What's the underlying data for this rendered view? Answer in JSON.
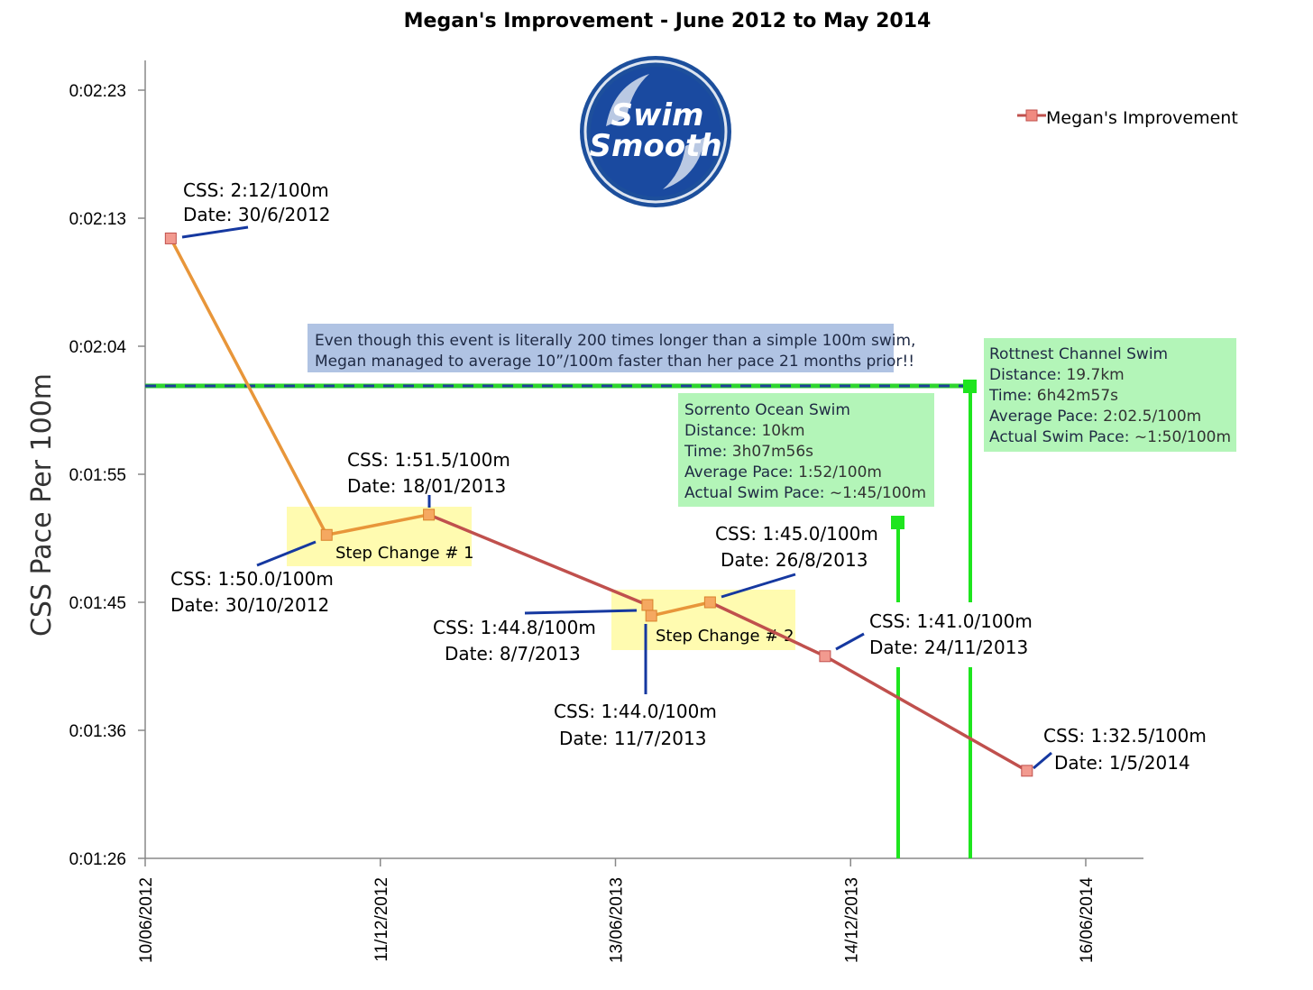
{
  "chart_data": {
    "type": "line",
    "title": "Megan's Improvement - June 2012 to May 2014",
    "ylabel": "CSS Pace Per 100m",
    "xlabel": "",
    "y_ticks": [
      "0:01:26",
      "0:01:36",
      "0:01:45",
      "0:01:55",
      "0:02:04",
      "0:02:13",
      "0:02:23"
    ],
    "x_ticks": [
      "10/06/2012",
      "11/12/2012",
      "13/06/2013",
      "14/12/2013",
      "16/06/2014"
    ],
    "series": [
      {
        "name": "Megan's Improvement",
        "color": "#c0504d",
        "points": [
          {
            "x": "2012-06-30",
            "y": "2:12"
          },
          {
            "x": "2012-10-30",
            "y": "1:50.0"
          },
          {
            "x": "2013-01-18",
            "y": "1:51.5"
          },
          {
            "x": "2013-07-08",
            "y": "1:44.8"
          },
          {
            "x": "2013-07-11",
            "y": "1:44.0"
          },
          {
            "x": "2013-08-26",
            "y": "1:45.0"
          },
          {
            "x": "2013-11-24",
            "y": "1:41.0"
          },
          {
            "x": "2014-05-01",
            "y": "1:32.5"
          }
        ]
      }
    ],
    "legend_position": "top-right",
    "grid": false,
    "annotations": [
      {
        "lines": [
          "CSS: 2:12/100m",
          "Date: 30/6/2012"
        ]
      },
      {
        "lines": [
          "CSS: 1:51.5/100m",
          "Date: 18/01/2013"
        ]
      },
      {
        "lines": [
          "CSS: 1:50.0/100m",
          "Date: 30/10/2012"
        ]
      },
      {
        "lines": [
          "CSS: 1:45.0/100m",
          "Date: 26/8/2013"
        ]
      },
      {
        "lines": [
          "CSS: 1:44.8/100m",
          "Date: 8/7/2013"
        ]
      },
      {
        "lines": [
          "CSS: 1:44.0/100m",
          "Date: 11/7/2013"
        ]
      },
      {
        "lines": [
          "CSS: 1:41.0/100m",
          "Date: 24/11/2013"
        ]
      },
      {
        "lines": [
          "CSS: 1:32.5/100m",
          "Date: 1/5/2014"
        ]
      }
    ],
    "step_changes": [
      "Step Change # 1",
      "Step Change # 2"
    ],
    "callout": [
      "Even though this event is literally 200 times longer than a simple 100m swim,",
      "Megan managed to average 10”/100m faster than her pace 21 months prior!!"
    ],
    "event_boxes": [
      {
        "title": "Sorrento Ocean Swim",
        "rows": [
          {
            "label": "Distance: ",
            "value": "10km"
          },
          {
            "label": "Time: ",
            "value": "3h07m56s"
          },
          {
            "label": "Average Pace: ",
            "value": "1:52/100m"
          },
          {
            "label": "Actual Swim Pace: ",
            "value": "~1:45/100m"
          }
        ]
      },
      {
        "title": "Rottnest Channel Swim",
        "rows": [
          {
            "label": "Distance: ",
            "value": "19.7km"
          },
          {
            "label": "Time: ",
            "value": "6h42m57s"
          },
          {
            "label": "Average Pace: ",
            "value": "2:02.5/100m"
          },
          {
            "label": "Actual Swim Pace: ",
            "value": "~1:50/100m"
          }
        ]
      }
    ],
    "logo": [
      "Swim",
      "Smooth"
    ]
  }
}
